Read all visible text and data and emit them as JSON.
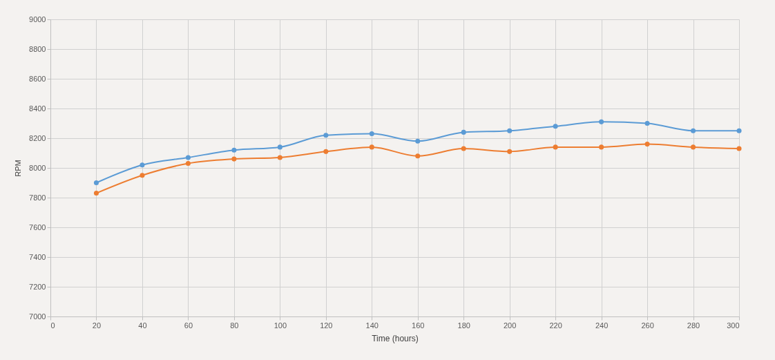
{
  "chart_data": {
    "type": "line",
    "xlabel": "Time (hours)",
    "ylabel": "RPM",
    "x": [
      20,
      40,
      60,
      80,
      100,
      120,
      140,
      160,
      180,
      200,
      220,
      240,
      260,
      280,
      300
    ],
    "series": [
      {
        "color": "#5b9bd5",
        "values": [
          7900,
          8020,
          8070,
          8120,
          8140,
          8220,
          8230,
          8180,
          8240,
          8250,
          8280,
          8310,
          8300,
          8250,
          8250
        ]
      },
      {
        "color": "#ed7d31",
        "values": [
          7830,
          7950,
          8030,
          8060,
          8070,
          8110,
          8140,
          8080,
          8130,
          8110,
          8140,
          8140,
          8160,
          8140,
          8130
        ]
      }
    ],
    "xlim": [
      0,
      300
    ],
    "xticks": [
      0,
      20,
      40,
      60,
      80,
      100,
      120,
      140,
      160,
      180,
      200,
      220,
      240,
      260,
      280,
      300
    ],
    "ylim": [
      7000,
      9000
    ],
    "yticks": [
      7000,
      7200,
      7400,
      7600,
      7800,
      8000,
      8200,
      8400,
      8600,
      8800,
      9000
    ],
    "grid": true,
    "marker": "circle",
    "line_style": "solid",
    "legend": false
  }
}
